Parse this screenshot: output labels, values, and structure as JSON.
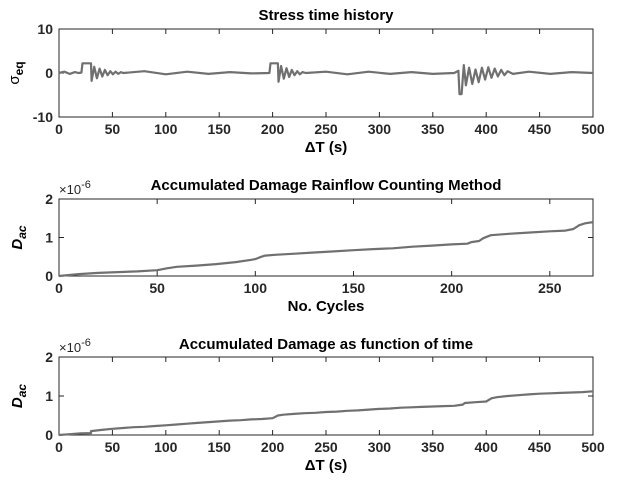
{
  "chart_data": [
    {
      "type": "line",
      "title": "Stress time history",
      "xlabel": "ΔT (s)",
      "ylabel": "σ",
      "ylabel_sub": "eq",
      "xlim": [
        0,
        500
      ],
      "ylim": [
        -10,
        10
      ],
      "xticks": [
        "0",
        "50",
        "100",
        "150",
        "200",
        "250",
        "300",
        "350",
        "400",
        "450",
        "500"
      ],
      "xtick_values": [
        0,
        50,
        100,
        150,
        200,
        250,
        300,
        350,
        400,
        450,
        500
      ],
      "yticks": [
        "-10",
        "0",
        "10"
      ],
      "ytick_values": [
        -10,
        0,
        10
      ],
      "color": "#707070",
      "series": [
        {
          "x": [
            0,
            5,
            10,
            15,
            18,
            21,
            22,
            30,
            30.5,
            33,
            35.5,
            38,
            40.5,
            43,
            45.5,
            48,
            50.5,
            53,
            55.5,
            58,
            60,
            80,
            100,
            120,
            140,
            160,
            180,
            197,
            198,
            205,
            205.5,
            208,
            210.5,
            213,
            215.5,
            218,
            220.5,
            223,
            225.5,
            228,
            231,
            250,
            270,
            290,
            310,
            330,
            350,
            370,
            374,
            375,
            377,
            379,
            381,
            384,
            387,
            390,
            393,
            396,
            399,
            402,
            405,
            408,
            411,
            414,
            417,
            420,
            425,
            440,
            460,
            480,
            500
          ],
          "y": [
            0,
            0.3,
            -0.2,
            0.2,
            0,
            0.1,
            2.2,
            2.2,
            -1.8,
            1.4,
            -1.2,
            1,
            -0.8,
            0.7,
            -0.5,
            0.4,
            -0.3,
            0.3,
            -0.2,
            0.2,
            0,
            0.4,
            -0.3,
            0.3,
            -0.2,
            0.2,
            -0.1,
            0,
            2.2,
            2.2,
            -2,
            1.6,
            -1.3,
            1.1,
            -0.9,
            0.7,
            -0.5,
            0.4,
            -0.3,
            0.2,
            0,
            0.3,
            -0.3,
            0.3,
            -0.2,
            0.2,
            -0.2,
            0,
            0.5,
            -4.8,
            -4.8,
            1.8,
            -2.8,
            1.2,
            -2.5,
            0.8,
            -2.1,
            1.2,
            -1.5,
            1.3,
            -1.1,
            1,
            -0.8,
            0.7,
            -0.5,
            0.4,
            -0.2,
            0.3,
            -0.2,
            0.2,
            0
          ]
        }
      ]
    },
    {
      "type": "line",
      "title": "Accumulated Damage Rainflow Counting Method",
      "xlabel": "No. Cycles",
      "ylabel": "D",
      "ylabel_sub": "ac",
      "scale_label": "×10",
      "scale_exp": "-6",
      "xlim": [
        0,
        272
      ],
      "ylim": [
        0,
        2
      ],
      "xticks": [
        "0",
        "50",
        "100",
        "150",
        "200",
        "250"
      ],
      "xtick_values": [
        0,
        50,
        100,
        150,
        200,
        250
      ],
      "yticks": [
        "0",
        "1",
        "2"
      ],
      "ytick_values": [
        0,
        1,
        2
      ],
      "color": "#707070",
      "series": [
        {
          "x": [
            0,
            10,
            20,
            30,
            40,
            50,
            55,
            60,
            70,
            80,
            90,
            98,
            100,
            103,
            105,
            110,
            120,
            130,
            140,
            150,
            160,
            170,
            180,
            190,
            200,
            208,
            210,
            214,
            216,
            218,
            220,
            230,
            240,
            250,
            258,
            262,
            265,
            268,
            272
          ],
          "y": [
            0,
            0.05,
            0.08,
            0.1,
            0.12,
            0.15,
            0.2,
            0.24,
            0.27,
            0.31,
            0.36,
            0.42,
            0.44,
            0.5,
            0.53,
            0.55,
            0.58,
            0.61,
            0.64,
            0.67,
            0.7,
            0.72,
            0.76,
            0.79,
            0.82,
            0.84,
            0.88,
            0.91,
            0.98,
            1.02,
            1.06,
            1.1,
            1.13,
            1.16,
            1.18,
            1.22,
            1.32,
            1.37,
            1.4
          ]
        }
      ]
    },
    {
      "type": "line",
      "title": "Accumulated Damage as function of time",
      "xlabel": "ΔT (s)",
      "ylabel": "D",
      "ylabel_sub": "ac",
      "scale_label": "×10",
      "scale_exp": "-6",
      "xlim": [
        0,
        500
      ],
      "ylim": [
        0,
        2
      ],
      "xticks": [
        "0",
        "50",
        "100",
        "150",
        "200",
        "250",
        "300",
        "350",
        "400",
        "450",
        "500"
      ],
      "xtick_values": [
        0,
        50,
        100,
        150,
        200,
        250,
        300,
        350,
        400,
        450,
        500
      ],
      "yticks": [
        "0",
        "1",
        "2"
      ],
      "ytick_values": [
        0,
        1,
        2
      ],
      "color": "#707070",
      "series": [
        {
          "x": [
            0,
            10,
            20,
            30,
            30,
            40,
            50,
            60,
            70,
            80,
            90,
            100,
            110,
            120,
            130,
            140,
            150,
            160,
            170,
            180,
            190,
            200,
            205,
            210,
            220,
            230,
            240,
            250,
            260,
            270,
            280,
            290,
            300,
            310,
            320,
            330,
            340,
            350,
            360,
            370,
            378,
            380,
            390,
            400,
            405,
            410,
            420,
            430,
            440,
            450,
            460,
            470,
            480,
            490,
            500
          ],
          "y": [
            0,
            0.02,
            0.04,
            0.05,
            0.1,
            0.13,
            0.16,
            0.18,
            0.2,
            0.21,
            0.23,
            0.25,
            0.27,
            0.29,
            0.31,
            0.33,
            0.35,
            0.37,
            0.38,
            0.4,
            0.41,
            0.43,
            0.5,
            0.52,
            0.54,
            0.56,
            0.57,
            0.59,
            0.6,
            0.62,
            0.63,
            0.65,
            0.67,
            0.68,
            0.7,
            0.71,
            0.72,
            0.73,
            0.74,
            0.75,
            0.78,
            0.82,
            0.84,
            0.86,
            0.94,
            0.97,
            1,
            1.02,
            1.04,
            1.06,
            1.07,
            1.08,
            1.09,
            1.1,
            1.12
          ]
        }
      ]
    }
  ]
}
